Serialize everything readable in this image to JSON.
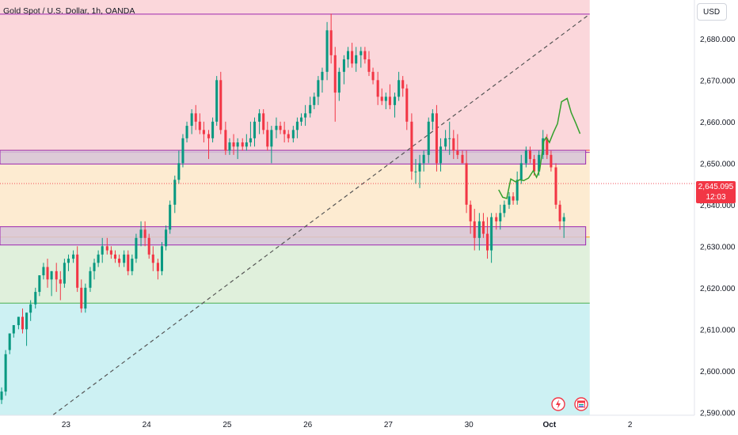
{
  "header": {
    "title": "Gold Spot / U.S. Dollar, 1h, OANDA"
  },
  "axis": {
    "currency": "USD"
  },
  "last_price": {
    "value": "2,645.095",
    "countdown": "12:03",
    "color": "#f23645"
  },
  "colors": {
    "up": "#089981",
    "down": "#f23645",
    "zone_top": "#fbd7db",
    "zone_mid": "#fdebd1",
    "zone_low": "#e0f0dc",
    "zone_bottom": "#cdf1f3",
    "box_fill": "#d7c6d8",
    "box_border": "#9c27b0",
    "projection": "#33a02c"
  },
  "icons": [
    "lightning-icon",
    "calendar-flag-icon"
  ],
  "chart_data": {
    "type": "candlestick",
    "title": "Gold Spot / U.S. Dollar, 1h, OANDA",
    "y_ticks": [
      "2,590.000",
      "2,600.000",
      "2,610.000",
      "2,620.000",
      "2,630.000",
      "2,640.000",
      "2,650.000",
      "2,660.000",
      "2,670.000",
      "2,680.000"
    ],
    "y_tick_values": [
      2590,
      2600,
      2610,
      2620,
      2630,
      2640,
      2650,
      2660,
      2670,
      2680
    ],
    "ylim": [
      2589.3,
      2689.3
    ],
    "x_ticks": [
      "23",
      "24",
      "25",
      "26",
      "27",
      "30",
      "Oct",
      "2"
    ],
    "x_tick_values": [
      23,
      24,
      25,
      26,
      27,
      28,
      29,
      30
    ],
    "xlim": [
      22.18,
      30.8
    ],
    "zones": [
      {
        "name": "top",
        "from": 2653.3,
        "to": 2689.3,
        "x_end": 29.5
      },
      {
        "name": "mid",
        "from": 2632.3,
        "to": 2653.3,
        "x_end": 29.5
      },
      {
        "name": "low",
        "from": 2616.3,
        "to": 2632.3,
        "x_end": 29.5
      },
      {
        "name": "bottom",
        "from": 2589.3,
        "to": 2616.3,
        "x_end": 29.5
      }
    ],
    "boxes": [
      {
        "from": 2649.8,
        "to": 2653.1,
        "x0": 22.18,
        "x1": 29.45
      },
      {
        "from": 2630.3,
        "to": 2634.7,
        "x0": 22.18,
        "x1": 29.45
      }
    ],
    "lines": [
      {
        "price": 2653.1,
        "color": "#f23645",
        "x_end": 29.5
      },
      {
        "price": 2652.6,
        "color": "#9c27b0",
        "x_end": 29.5
      },
      {
        "price": 2632.2,
        "color": "#ff9800",
        "x_end": 29.5
      },
      {
        "price": 2616.3,
        "color": "#4caf50",
        "x_end": 29.5
      },
      {
        "price": 2685.9,
        "color": "#9c27b0",
        "x0": 22.18,
        "x_end": 29.5
      }
    ],
    "trendline": {
      "x0": 22.84,
      "y0": 2589.4,
      "x1": 29.5,
      "y1": 2685.9
    },
    "last_price": 2645.095,
    "projection": {
      "x": [
        28.37,
        28.42,
        28.47,
        28.52,
        28.58,
        28.63,
        28.68,
        28.74,
        28.8,
        28.84,
        28.88,
        28.93,
        28.96,
        29.0,
        29.05,
        29.1,
        29.15,
        29.22,
        29.27,
        29.33,
        29.38
      ],
      "y": [
        2643.6,
        2641.8,
        2641.5,
        2646.2,
        2645.5,
        2646.0,
        2645.8,
        2646.4,
        2648.2,
        2646.6,
        2648.5,
        2655.3,
        2656.2,
        2655.0,
        2657.4,
        2659.5,
        2664.8,
        2665.6,
        2662.2,
        2659.5,
        2657.1
      ]
    },
    "candles": {
      "x": [
        22.2,
        22.25,
        22.3,
        22.35,
        22.41,
        22.46,
        22.51,
        22.56,
        22.62,
        22.67,
        22.72,
        22.77,
        22.82,
        22.88,
        22.93,
        22.98,
        23.03,
        23.09,
        23.14,
        23.19,
        23.24,
        23.3,
        23.35,
        23.4,
        23.45,
        23.51,
        23.56,
        23.61,
        23.66,
        23.72,
        23.77,
        23.82,
        23.87,
        23.93,
        23.98,
        24.03,
        24.08,
        24.14,
        24.19,
        24.24,
        24.29,
        24.35,
        24.4,
        24.45,
        24.5,
        24.56,
        24.61,
        24.66,
        24.71,
        24.77,
        24.82,
        24.87,
        24.92,
        24.98,
        25.03,
        25.08,
        25.13,
        25.19,
        25.24,
        25.29,
        25.34,
        25.4,
        25.45,
        25.5,
        25.55,
        25.61,
        25.66,
        25.71,
        25.76,
        25.82,
        25.87,
        25.92,
        25.97,
        26.03,
        26.08,
        26.13,
        26.18,
        26.24,
        26.29,
        26.34,
        26.39,
        26.45,
        26.5,
        26.55,
        26.6,
        26.66,
        26.71,
        26.76,
        26.81,
        26.87,
        26.92,
        26.97,
        27.02,
        27.08,
        27.13,
        27.18,
        27.23,
        27.29,
        27.34,
        27.39,
        27.44,
        27.5,
        27.55,
        27.6,
        27.65,
        27.71,
        27.76,
        27.81,
        27.86,
        27.92,
        27.97,
        28.02,
        28.07,
        28.13,
        28.18,
        28.23,
        28.28,
        28.34
      ],
      "open": [
        2593.0,
        2595.0,
        2605.0,
        2609.0,
        2611.0,
        2613.0,
        2610.0,
        2614.0,
        2616.0,
        2619.0,
        2623.0,
        2625.0,
        2622.0,
        2624.0,
        2622.0,
        2621.0,
        2626.0,
        2627.0,
        2628.0,
        2620.0,
        2615.0,
        2620.0,
        2624.0,
        2626.0,
        2628.0,
        2630.0,
        2629.0,
        2628.0,
        2627.0,
        2626.0,
        2628.0,
        2624.0,
        2627.0,
        2632.0,
        2634.0,
        2632.0,
        2628.0,
        2626.0,
        2624.0,
        2630.0,
        2634.0,
        2640.0,
        2646.0,
        2650.0,
        2656.0,
        2659.0,
        2662.0,
        2660.0,
        2658.0,
        2657.0,
        2656.0,
        2660.0,
        2670.0,
        2658.0,
        2653.0,
        2655.0,
        2654.0,
        2655.0,
        2654.0,
        2655.0,
        2656.0,
        2660.0,
        2662.0,
        2658.0,
        2654.0,
        2658.0,
        2659.0,
        2658.0,
        2657.0,
        2656.0,
        2658.0,
        2660.0,
        2661.0,
        2662.0,
        2664.0,
        2666.0,
        2670.0,
        2672.0,
        2682.0,
        2676.0,
        2667.0,
        2672.0,
        2675.0,
        2677.0,
        2674.0,
        2676.0,
        2677.0,
        2675.0,
        2672.0,
        2670.0,
        2666.0,
        2665.0,
        2666.0,
        2664.0,
        2666.0,
        2670.0,
        2668.0,
        2660.0,
        2648.0,
        2648.0,
        2650.0,
        2652.0,
        2660.0,
        2662.0,
        2650.0,
        2654.0,
        2656.0,
        2656.0,
        2653.0,
        2652.0,
        2650.0,
        2640.0,
        2636.0,
        2632.0,
        2636.0,
        2633.0,
        2629.0,
        2637.0
      ],
      "high": [
        2596.0,
        2605.0,
        2609.0,
        2611.0,
        2613.0,
        2615.0,
        2614.0,
        2617.0,
        2620.0,
        2623.0,
        2626.0,
        2627.0,
        2624.0,
        2626.0,
        2624.0,
        2627.0,
        2628.0,
        2629.0,
        2630.0,
        2622.0,
        2621.0,
        2625.0,
        2627.0,
        2629.0,
        2632.0,
        2632.0,
        2630.0,
        2629.0,
        2628.0,
        2629.0,
        2629.0,
        2628.0,
        2633.0,
        2636.0,
        2636.0,
        2633.0,
        2630.0,
        2627.0,
        2631.0,
        2635.0,
        2641.0,
        2647.0,
        2653.0,
        2657.0,
        2660.0,
        2663.0,
        2664.0,
        2662.0,
        2660.0,
        2658.0,
        2661.0,
        2671.0,
        2672.0,
        2660.0,
        2656.0,
        2657.0,
        2656.0,
        2656.0,
        2657.0,
        2660.0,
        2661.0,
        2663.0,
        2663.0,
        2660.0,
        2659.0,
        2661.0,
        2660.0,
        2660.0,
        2658.0,
        2659.0,
        2661.0,
        2662.0,
        2664.0,
        2666.0,
        2667.0,
        2671.0,
        2673.0,
        2684.0,
        2686.0,
        2678.0,
        2673.0,
        2676.0,
        2678.0,
        2679.0,
        2678.0,
        2678.0,
        2678.0,
        2677.0,
        2673.0,
        2672.0,
        2668.0,
        2667.0,
        2669.0,
        2667.0,
        2672.0,
        2671.0,
        2669.0,
        2662.0,
        2651.0,
        2652.0,
        2653.0,
        2661.0,
        2663.0,
        2664.0,
        2656.0,
        2658.0,
        2660.0,
        2658.0,
        2657.0,
        2653.0,
        2653.0,
        2641.0,
        2639.0,
        2638.0,
        2638.0,
        2637.0,
        2638.0,
        2638.0
      ],
      "low": [
        2592.0,
        2594.0,
        2604.0,
        2608.0,
        2610.0,
        2609.0,
        2606.0,
        2612.0,
        2615.0,
        2618.0,
        2622.0,
        2620.0,
        2618.0,
        2619.0,
        2617.0,
        2620.0,
        2624.0,
        2626.0,
        2619.0,
        2614.0,
        2614.0,
        2619.0,
        2622.0,
        2625.0,
        2626.0,
        2628.0,
        2627.0,
        2626.0,
        2625.0,
        2625.0,
        2623.0,
        2623.0,
        2626.0,
        2630.0,
        2630.0,
        2627.0,
        2624.0,
        2622.0,
        2623.0,
        2629.0,
        2633.0,
        2638.0,
        2645.0,
        2649.0,
        2655.0,
        2657.0,
        2658.0,
        2657.0,
        2655.0,
        2651.0,
        2655.0,
        2659.0,
        2657.0,
        2652.0,
        2652.0,
        2652.0,
        2651.0,
        2653.0,
        2653.0,
        2654.0,
        2654.0,
        2657.0,
        2657.0,
        2653.0,
        2650.0,
        2656.0,
        2657.0,
        2655.0,
        2655.0,
        2655.0,
        2656.0,
        2659.0,
        2659.0,
        2661.0,
        2663.0,
        2664.0,
        2667.0,
        2670.0,
        2674.0,
        2660.0,
        2665.0,
        2669.0,
        2673.0,
        2673.0,
        2672.0,
        2673.0,
        2674.0,
        2671.0,
        2669.0,
        2664.0,
        2664.0,
        2663.0,
        2663.0,
        2661.0,
        2665.0,
        2666.0,
        2658.0,
        2646.0,
        2645.0,
        2644.0,
        2648.0,
        2650.0,
        2658.0,
        2648.0,
        2648.0,
        2653.0,
        2652.0,
        2651.0,
        2651.0,
        2650.0,
        2638.0,
        2633.0,
        2629.0,
        2629.0,
        2632.0,
        2627.0,
        2626.0,
        2634.0
      ],
      "close": [
        2595.0,
        2604.0,
        2609.0,
        2611.0,
        2613.0,
        2610.0,
        2614.0,
        2616.0,
        2619.0,
        2623.0,
        2625.0,
        2622.0,
        2624.0,
        2622.0,
        2621.0,
        2626.0,
        2627.0,
        2628.0,
        2620.0,
        2615.0,
        2620.0,
        2624.0,
        2626.0,
        2628.0,
        2630.0,
        2629.0,
        2628.0,
        2627.0,
        2626.0,
        2628.0,
        2624.0,
        2627.0,
        2632.0,
        2634.0,
        2632.0,
        2628.0,
        2626.0,
        2624.0,
        2630.0,
        2634.0,
        2640.0,
        2646.0,
        2650.0,
        2656.0,
        2659.0,
        2662.0,
        2660.0,
        2658.0,
        2657.0,
        2656.0,
        2660.0,
        2670.0,
        2658.0,
        2653.0,
        2655.0,
        2654.0,
        2655.0,
        2654.0,
        2655.0,
        2656.0,
        2660.0,
        2662.0,
        2658.0,
        2654.0,
        2658.0,
        2659.0,
        2658.0,
        2657.0,
        2656.0,
        2658.0,
        2660.0,
        2661.0,
        2662.0,
        2664.0,
        2666.0,
        2670.0,
        2672.0,
        2682.0,
        2676.0,
        2667.0,
        2672.0,
        2675.0,
        2677.0,
        2674.0,
        2676.0,
        2677.0,
        2675.0,
        2672.0,
        2670.0,
        2666.0,
        2665.0,
        2666.0,
        2664.0,
        2666.0,
        2670.0,
        2668.0,
        2660.0,
        2648.0,
        2648.0,
        2650.0,
        2652.0,
        2660.0,
        2662.0,
        2650.0,
        2654.0,
        2656.0,
        2656.0,
        2653.0,
        2652.0,
        2650.0,
        2640.0,
        2636.0,
        2632.0,
        2636.0,
        2633.0,
        2629.0,
        2637.0,
        2636.0
      ]
    },
    "candles_after": {
      "x": [
        28.39,
        28.44,
        28.5,
        28.55,
        28.6,
        28.65,
        28.71,
        28.76,
        28.81,
        28.87,
        28.92,
        28.97,
        29.02,
        29.08,
        29.13,
        29.18
      ],
      "open": [
        2636.0,
        2638.0,
        2640.0,
        2642.0,
        2641.0,
        2646.0,
        2650.0,
        2653.0,
        2651.0,
        2648.0,
        2652.0,
        2656.0,
        2652.0,
        2649.0,
        2640.0,
        2636.0
      ],
      "high": [
        2640.0,
        2641.0,
        2643.0,
        2643.0,
        2648.0,
        2652.0,
        2654.0,
        2654.0,
        2652.0,
        2653.0,
        2658.0,
        2657.0,
        2653.0,
        2650.0,
        2641.0,
        2638.0
      ],
      "low": [
        2634.0,
        2637.0,
        2639.0,
        2640.0,
        2640.0,
        2645.0,
        2649.0,
        2650.0,
        2647.0,
        2647.0,
        2651.0,
        2651.0,
        2648.0,
        2639.0,
        2634.0,
        2632.0
      ],
      "close": [
        2638.0,
        2640.0,
        2642.0,
        2641.0,
        2646.0,
        2650.0,
        2653.0,
        2651.0,
        2648.0,
        2652.0,
        2656.0,
        2652.0,
        2649.0,
        2640.0,
        2636.0,
        2637.0
      ]
    }
  }
}
